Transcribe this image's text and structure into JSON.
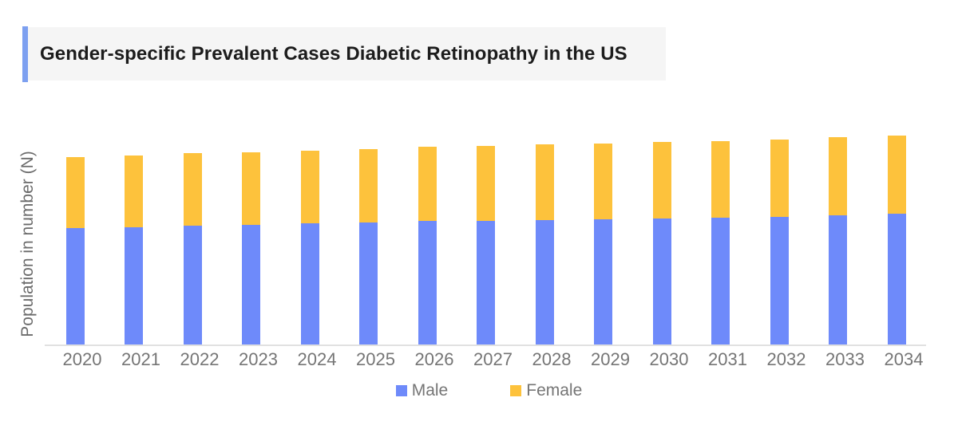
{
  "title": {
    "text": "Gender-specific Prevalent Cases Diabetic Retinopathy in the US"
  },
  "y_axis": {
    "label": "Population in number (N)",
    "tick_labels_visible": false
  },
  "colors": {
    "male_bar": "#6e8afa",
    "female_bar": "#fdc23c",
    "title_accent": "#7da0f0",
    "title_background": "#f5f5f5",
    "axis_text": "#757575",
    "axis_line": "#e1e1e1"
  },
  "legend": {
    "position": "bottom",
    "items": [
      {
        "label": "Male",
        "color": "#6e8afa"
      },
      {
        "label": "Female",
        "color": "#fdc23c"
      }
    ]
  },
  "chart_data": {
    "type": "bar",
    "stacked": true,
    "title": "Gender-specific Prevalent Cases Diabetic Retinopathy in the US",
    "xlabel": "",
    "ylabel": "Population in number (N)",
    "units": "relative units (y-axis shown without numeric tick labels)",
    "categories": [
      "2020",
      "2021",
      "2022",
      "2023",
      "2024",
      "2025",
      "2026",
      "2027",
      "2028",
      "2029",
      "2030",
      "2031",
      "2032",
      "2033",
      "2034"
    ],
    "series": [
      {
        "name": "Male",
        "color": "#6e8afa",
        "values": [
          147,
          148,
          150,
          151,
          153,
          154,
          156,
          156,
          157,
          158,
          159,
          160,
          161,
          163,
          165
        ]
      },
      {
        "name": "Female",
        "color": "#fdc23c",
        "values": [
          89,
          90,
          91,
          91,
          91,
          92,
          93,
          94,
          95,
          95,
          96,
          96,
          97,
          98,
          98
        ]
      }
    ],
    "totals": [
      236,
      238,
      241,
      242,
      244,
      246,
      249,
      250,
      252,
      253,
      255,
      256,
      258,
      261,
      263
    ],
    "ylim": [
      0,
      273
    ],
    "grid": false,
    "y_tick_labels": [],
    "legend_position": "bottom"
  }
}
